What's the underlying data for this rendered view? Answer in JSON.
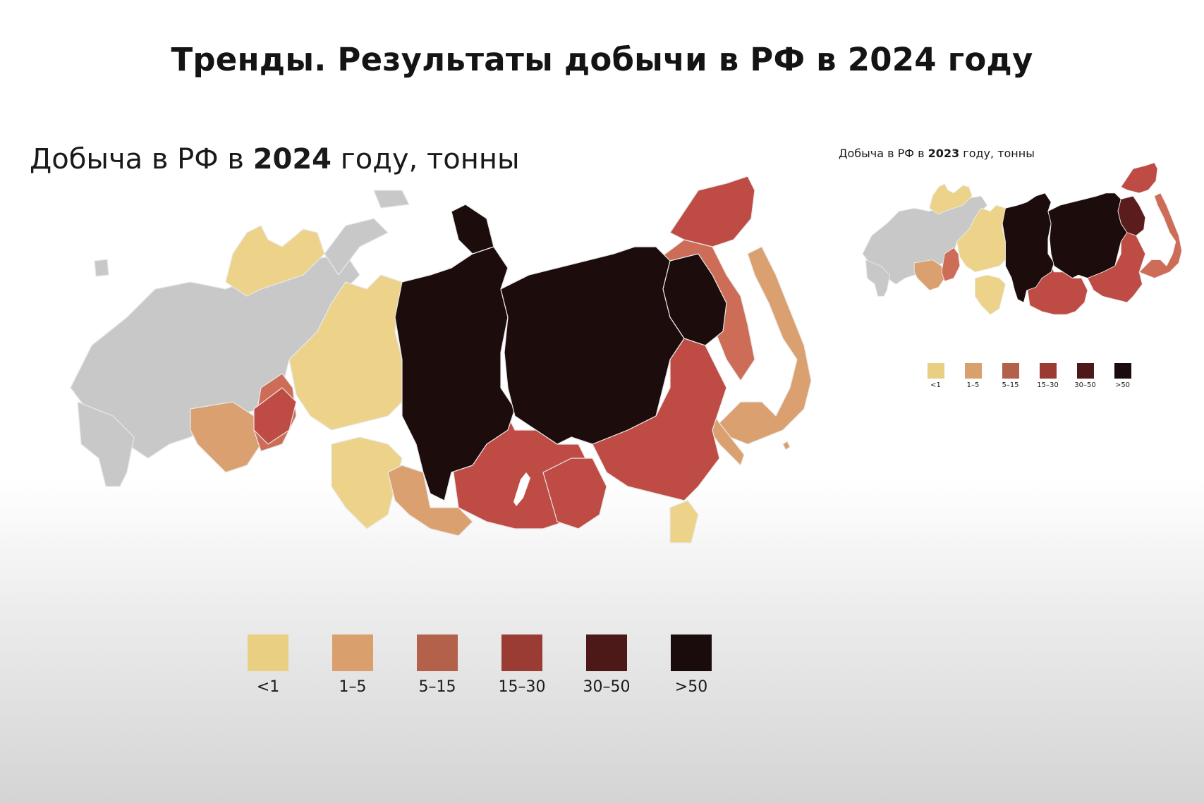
{
  "page": {
    "title": "Тренды. Результаты добычи в РФ в 2024 году"
  },
  "main_map": {
    "title_prefix": "Добыча в РФ в ",
    "title_year": "2024",
    "title_suffix": " году, тонны"
  },
  "inset_map": {
    "title_prefix": "Добыча в РФ в ",
    "title_year": "2023",
    "title_suffix": " году, тонны"
  },
  "legend": [
    {
      "label": "<1",
      "color": "#e8cf82"
    },
    {
      "label": "1–5",
      "color": "#d9a06e"
    },
    {
      "label": "5–15",
      "color": "#b3614b"
    },
    {
      "label": "15–30",
      "color": "#9a3b34"
    },
    {
      "label": "30–50",
      "color": "#4c1818"
    },
    {
      "label": ">50",
      "color": "#1a0c0c"
    }
  ],
  "colors": {
    "no_data": "#c8c8c8",
    "lt1": "#ecd389",
    "c1_5": "#dba06f",
    "c5_15": "#cd6d57",
    "c15_30": "#bf4b45",
    "c30_50": "#5a1c1c",
    "gt50": "#1c0c0c"
  }
}
